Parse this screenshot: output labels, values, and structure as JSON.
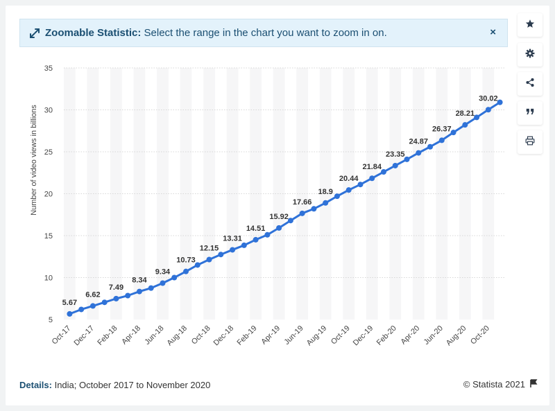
{
  "banner": {
    "label_bold": "Zoomable Statistic:",
    "label_rest": " Select the range in the chart you want to zoom in on.",
    "close": "×"
  },
  "toolbar": {
    "icons": [
      "star-icon",
      "gear-icon",
      "share-icon",
      "quote-icon",
      "print-icon"
    ]
  },
  "footer": {
    "details_label": "Details:",
    "details_text": " India; October 2017 to November 2020",
    "copyright": "© Statista 2021"
  },
  "colors": {
    "line": "#2f72d8",
    "band": "#f6f6f7",
    "grid": "#d7d7d7"
  },
  "chart_data": {
    "type": "line",
    "title": "",
    "xlabel": "",
    "ylabel": "Number of video views in billions",
    "ylim": [
      5,
      35
    ],
    "yticks": [
      5,
      10,
      15,
      20,
      25,
      30,
      35
    ],
    "grid": true,
    "x": [
      "Oct-17",
      "Nov-17",
      "Dec-17",
      "Jan-18",
      "Feb-18",
      "Mar-18",
      "Apr-18",
      "May-18",
      "Jun-18",
      "Jul-18",
      "Aug-18",
      "Sep-18",
      "Oct-18",
      "Nov-18",
      "Dec-18",
      "Jan-19",
      "Feb-19",
      "Mar-19",
      "Apr-19",
      "May-19",
      "Jun-19",
      "Jul-19",
      "Aug-19",
      "Sep-19",
      "Oct-19",
      "Nov-19",
      "Dec-19",
      "Jan-20",
      "Feb-20",
      "Mar-20",
      "Apr-20",
      "May-20",
      "Jun-20",
      "Jul-20",
      "Aug-20",
      "Sep-20",
      "Oct-20",
      "Nov-20"
    ],
    "xtick_labels": [
      "Oct-17",
      "Dec-17",
      "Feb-18",
      "Apr-18",
      "Jun-18",
      "Aug-18",
      "Oct-18",
      "Dec-18",
      "Feb-19",
      "Apr-19",
      "Jun-19",
      "Aug-19",
      "Oct-19",
      "Dec-19",
      "Feb-20",
      "Apr-20",
      "Jun-20",
      "Aug-20",
      "Oct-20"
    ],
    "series": [
      {
        "name": "",
        "values": [
          5.67,
          6.2,
          6.62,
          7.05,
          7.49,
          7.85,
          8.34,
          8.75,
          9.34,
          10.0,
          10.73,
          11.5,
          12.15,
          12.75,
          13.31,
          13.85,
          14.51,
          15.1,
          15.92,
          16.8,
          17.66,
          18.2,
          18.9,
          19.7,
          20.44,
          21.1,
          21.84,
          22.6,
          23.35,
          24.1,
          24.87,
          25.6,
          26.37,
          27.3,
          28.21,
          29.1,
          30.02,
          30.9
        ],
        "data_labels": {
          "0": "5.67",
          "2": "6.62",
          "4": "7.49",
          "6": "8.34",
          "8": "9.34",
          "10": "10.73",
          "12": "12.15",
          "14": "13.31",
          "16": "14.51",
          "18": "15.92",
          "20": "17.66",
          "22": "18.9",
          "24": "20.44",
          "26": "21.84",
          "28": "23.35",
          "30": "24.87",
          "32": "26.37",
          "34": "28.21",
          "36": "30.02"
        }
      }
    ]
  }
}
